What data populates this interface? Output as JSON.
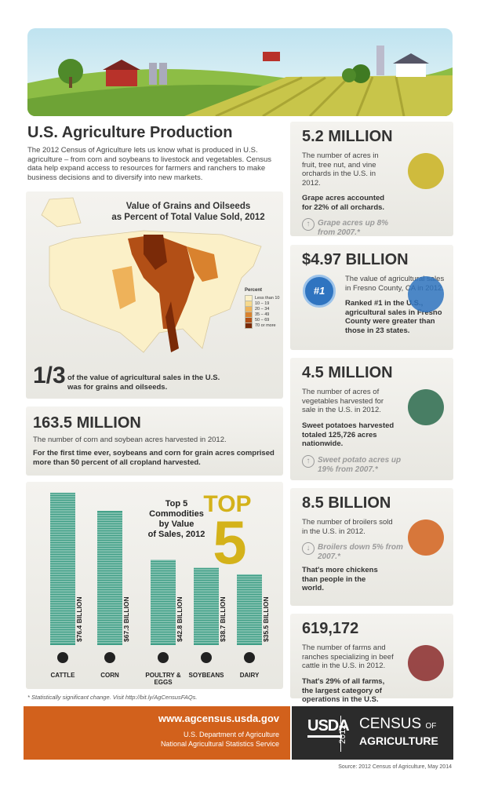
{
  "header": {
    "title": "U.S. Agriculture Production",
    "intro": "The 2012 Census of Agriculture lets us know what is produced in U.S. agriculture – from corn and soybeans to livestock and vegetables. Census data help expand access to resources for farmers and ranchers to make business decisions and to diversify into new markets."
  },
  "map": {
    "title": [
      "Value of Grains and Oilseeds",
      "as Percent of Total Value Sold, 2012"
    ],
    "legend_title": "Percent",
    "legend": [
      {
        "label": "Less than 10",
        "color": "#fbf0c8"
      },
      {
        "label": "10 – 19",
        "color": "#f6d98d"
      },
      {
        "label": "20 – 34",
        "color": "#eeb25a"
      },
      {
        "label": "35 – 49",
        "color": "#d9822e"
      },
      {
        "label": "50 – 69",
        "color": "#b24f16"
      },
      {
        "label": "70 or more",
        "color": "#7a2a08"
      }
    ],
    "fraction": "1/3",
    "fraction_text": "of the value of agricultural sales in the U.S. was for grains and oilseeds."
  },
  "corn_soy": {
    "headline": "163.5 MILLION",
    "description": "The number of corn and soybean acres harvested in 2012.",
    "detail": "For the first time ever, soybeans and corn for grain acres comprised more than 50 percent of all cropland harvested."
  },
  "commodities": {
    "title": [
      "Top 5",
      "Commodities",
      "by Value",
      "of Sales, 2012"
    ],
    "badge_word": "TOP",
    "badge_number": "5",
    "categories": [
      "CATTLE",
      "CORN",
      "POULTRY & EGGS",
      "SOYBEANS",
      "DAIRY"
    ],
    "values": [
      76.4,
      67.3,
      42.8,
      38.7,
      35.5
    ],
    "value_labels": [
      "$76.4 BILLION",
      "$67.3 BILLION",
      "$42.8 BILLION",
      "$38.7 BILLION",
      "$35.5 BILLION"
    ],
    "color": "#3f9e86"
  },
  "facts": [
    {
      "headline": "5.2 MILLION",
      "description": "The number of acres in fruit, tree nut, and vine orchards in the U.S. in 2012.",
      "detail": "Grape acres accounted for 22% of all orchards.",
      "trend": "Grape acres up 8% from 2007.*",
      "direction": "up"
    },
    {
      "headline": "$4.97 BILLION",
      "description": "The value of agricultural sales in Fresno County, CA in 2012.",
      "detail": "Ranked #1 in the U.S., agricultural sales in Fresno County were greater than those in 23 states.",
      "ribbon": "#1"
    },
    {
      "headline": "4.5 MILLION",
      "description": "The number of acres of vegetables harvested for sale in the U.S. in 2012.",
      "detail": "Sweet potatoes harvested totaled 125,726 acres nationwide.",
      "trend": "Sweet potato acres up 19% from 2007.*",
      "direction": "up"
    },
    {
      "headline": "8.5 BILLION",
      "description": "The number of broilers sold in the U.S. in 2012.",
      "trend": "Broilers down 5% from 2007.*",
      "direction": "down",
      "detail": "That's more chickens than people in the world."
    },
    {
      "headline": "619,172",
      "description": "The number of farms and ranches specializing in beef cattle in the U.S. in 2012.",
      "detail": "That's 29% of all farms, the largest category of operations in the U.S."
    }
  ],
  "footnote": "* Statistically significant change. Visit http://bit.ly/AgCensusFAQs.",
  "footer": {
    "url": "www.agcensus.usda.gov",
    "agency": [
      "U.S. Department of Agriculture",
      "National Agricultural Statistics Service"
    ],
    "usda": "USDA",
    "year": "2012",
    "census": "CENSUS",
    "of": "OF",
    "agriculture": "AGRICULTURE"
  },
  "source": "Source: 2012 Census of Agriculture, May 2014"
}
